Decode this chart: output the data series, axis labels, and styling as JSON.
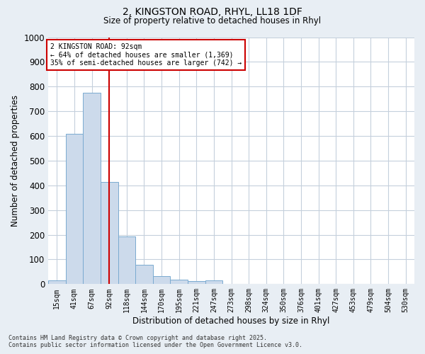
{
  "title_line1": "2, KINGSTON ROAD, RHYL, LL18 1DF",
  "title_line2": "Size of property relative to detached houses in Rhyl",
  "bar_labels": [
    "15sqm",
    "41sqm",
    "67sqm",
    "92sqm",
    "118sqm",
    "144sqm",
    "170sqm",
    "195sqm",
    "221sqm",
    "247sqm",
    "273sqm",
    "298sqm",
    "324sqm",
    "350sqm",
    "376sqm",
    "401sqm",
    "427sqm",
    "453sqm",
    "479sqm",
    "504sqm",
    "530sqm"
  ],
  "bar_values": [
    15,
    608,
    775,
    413,
    192,
    78,
    33,
    18,
    12,
    14,
    0,
    0,
    0,
    0,
    0,
    0,
    0,
    0,
    0,
    0,
    0
  ],
  "bar_color": "#ccdaeb",
  "bar_edgecolor": "#7aaad0",
  "vline_x": 3,
  "vline_color": "#cc0000",
  "ylabel": "Number of detached properties",
  "xlabel": "Distribution of detached houses by size in Rhyl",
  "ylim": [
    0,
    1000
  ],
  "yticks": [
    0,
    100,
    200,
    300,
    400,
    500,
    600,
    700,
    800,
    900,
    1000
  ],
  "annotation_text": "2 KINGSTON ROAD: 92sqm\n← 64% of detached houses are smaller (1,369)\n35% of semi-detached houses are larger (742) →",
  "annotation_box_color": "#ffffff",
  "annotation_box_edgecolor": "#cc0000",
  "footer_line1": "Contains HM Land Registry data © Crown copyright and database right 2025.",
  "footer_line2": "Contains public sector information licensed under the Open Government Licence v3.0.",
  "background_color": "#e8eef4",
  "plot_background_color": "#ffffff",
  "grid_color": "#c5d0dc"
}
